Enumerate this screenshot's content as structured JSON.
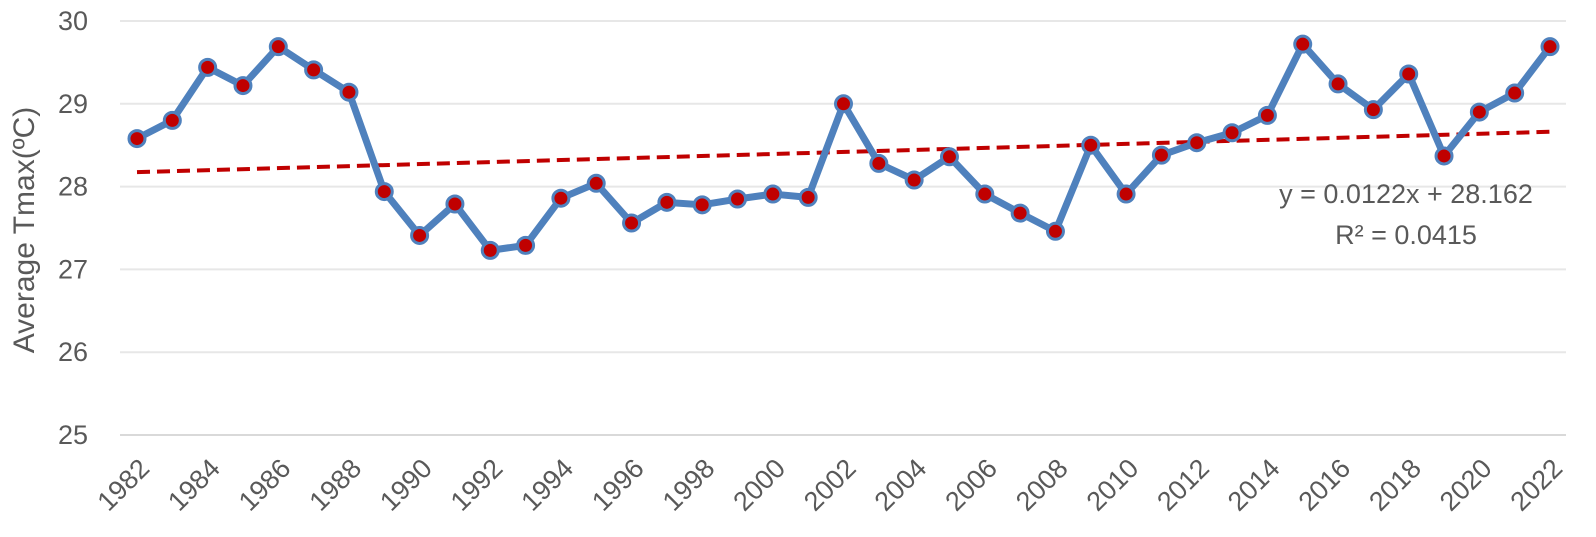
{
  "chart_data": {
    "type": "line",
    "ylabel": "Average Tmax(ºC)",
    "xlabel": "",
    "ylim": [
      25,
      30
    ],
    "yticks": [
      25,
      26,
      27,
      28,
      29,
      30
    ],
    "xticks": [
      1982,
      1984,
      1986,
      1988,
      1990,
      1992,
      1994,
      1996,
      1998,
      2000,
      2002,
      2004,
      2006,
      2008,
      2010,
      2012,
      2014,
      2016,
      2018,
      2020,
      2022
    ],
    "grid": true,
    "series": [
      {
        "x": [
          1982,
          1983,
          1984,
          1985,
          1986,
          1987,
          1988,
          1989,
          1990,
          1991,
          1992,
          1993,
          1994,
          1995,
          1996,
          1997,
          1998,
          1999,
          2000,
          2001,
          2002,
          2003,
          2004,
          2005,
          2006,
          2007,
          2008,
          2009,
          2010,
          2011,
          2012,
          2013,
          2014,
          2015,
          2016,
          2017,
          2018,
          2019,
          2020,
          2021,
          2022
        ],
        "values": [
          28.58,
          28.8,
          29.44,
          29.22,
          29.69,
          29.41,
          29.14,
          27.94,
          27.41,
          27.79,
          27.23,
          27.29,
          27.86,
          28.04,
          27.56,
          27.81,
          27.78,
          27.85,
          27.91,
          27.87,
          29.0,
          28.28,
          28.08,
          28.36,
          27.91,
          27.68,
          27.46,
          28.5,
          27.91,
          28.38,
          28.53,
          28.65,
          28.86,
          29.72,
          29.24,
          28.93,
          29.36,
          28.37,
          28.9,
          29.13,
          29.69
        ],
        "color": "#4f81bd",
        "marker_color": "#c00000"
      }
    ],
    "trendline": {
      "equation": "y = 0.0122x + 28.162",
      "r2": "R² = 0.0415",
      "slope": 0.0122,
      "intercept": 28.162,
      "color": "#c00000"
    }
  }
}
